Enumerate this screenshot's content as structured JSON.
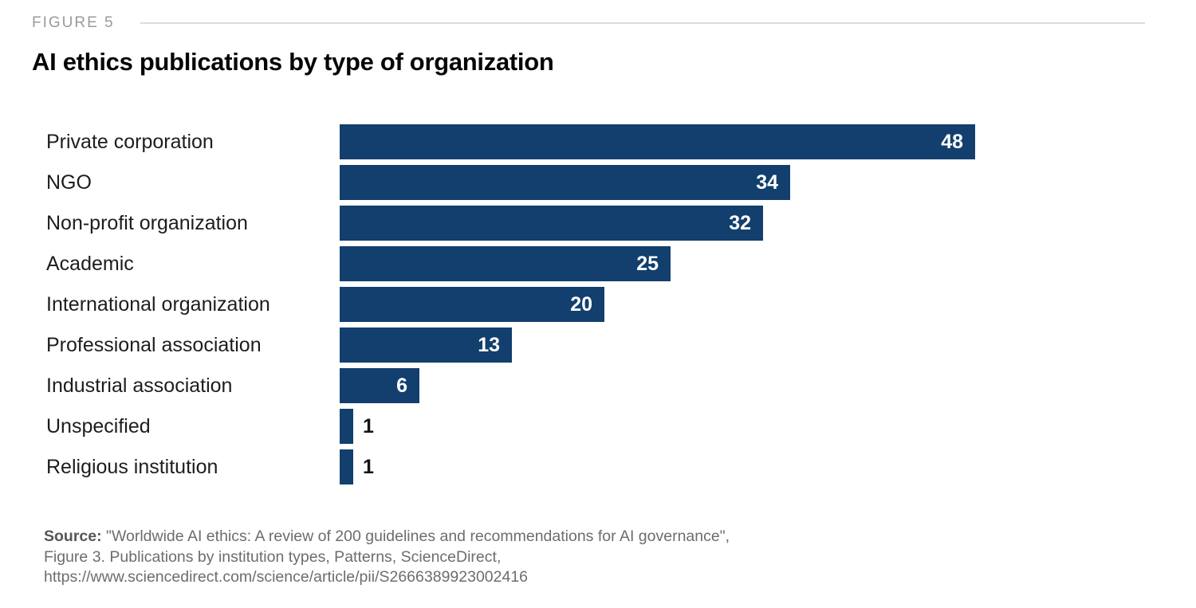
{
  "header": {
    "figure_label": "FIGURE 5"
  },
  "title": "AI ethics publications by type of organization",
  "chart_data": {
    "type": "bar",
    "orientation": "horizontal",
    "title": "AI ethics publications by type of organization",
    "xlabel": "",
    "ylabel": "",
    "xlim": [
      0,
      48
    ],
    "grid": false,
    "legend": false,
    "value_labels_shown": true,
    "categories": [
      "Private corporation",
      "NGO",
      "Non-profit organization",
      "Academic",
      "International organization",
      "Professional association",
      "Industrial association",
      "Unspecified",
      "Religious institution"
    ],
    "values": [
      48,
      34,
      32,
      25,
      20,
      13,
      6,
      1,
      1
    ]
  },
  "colors": {
    "bar": "#123F6D",
    "value_label_inside": "#FFFFFF",
    "value_label_outside": "#141414",
    "figure_label": "#9A9A9A",
    "rule": "#DCDCDC",
    "title": "#050505",
    "category_label": "#1D1D1D",
    "source_text": "#6D6D6D"
  },
  "source": {
    "prefix": "Source:",
    "line1_rest": " \"Worldwide AI ethics: A review of 200 guidelines and recommendations for AI governance\",",
    "line2": "Figure 3. Publications by institution types, Patterns, ScienceDirect,",
    "line3": "https://www.sciencedirect.com/science/article/pii/S2666389923002416"
  }
}
